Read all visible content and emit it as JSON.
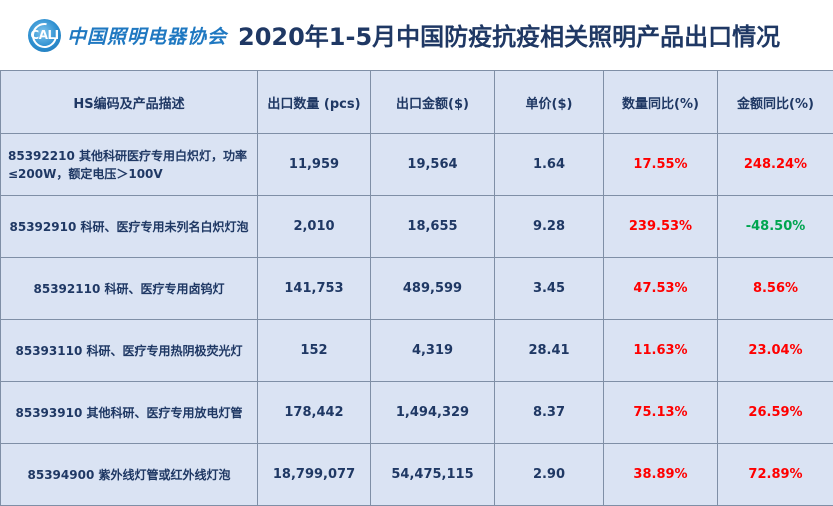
{
  "header": {
    "logo_text": "中国照明电器协会",
    "logo_mark": "CALI",
    "title": "2020年1-5月中国防疫抗疫相关照明产品出口情况"
  },
  "table": {
    "columns": [
      "HS编码及产品描述",
      "出口数量 (pcs)",
      "出口金额($)",
      "单价($)",
      "数量同比(%)",
      "金额同比(%)"
    ],
    "rows": [
      {
        "desc": "85392210 其他科研医疗专用白炽灯，功率≤200W，额定电压＞100V",
        "qty": "11,959",
        "amount": "19,564",
        "price": "1.64",
        "qty_yoy": "17.55%",
        "amt_yoy": "248.24%"
      },
      {
        "desc": "85392910 科研、医疗专用未列名白炽灯泡",
        "qty": "2,010",
        "amount": "18,655",
        "price": "9.28",
        "qty_yoy": "239.53%",
        "amt_yoy": "-48.50%"
      },
      {
        "desc": "85392110 科研、医疗专用卤钨灯",
        "qty": "141,753",
        "amount": "489,599",
        "price": "3.45",
        "qty_yoy": "47.53%",
        "amt_yoy": "8.56%"
      },
      {
        "desc": "85393110 科研、医疗专用热阴极荧光灯",
        "qty": "152",
        "amount": "4,319",
        "price": "28.41",
        "qty_yoy": "11.63%",
        "amt_yoy": "23.04%"
      },
      {
        "desc": "85393910 其他科研、医疗专用放电灯管",
        "qty": "178,442",
        "amount": "1,494,329",
        "price": "8.37",
        "qty_yoy": "75.13%",
        "amt_yoy": "26.59%"
      },
      {
        "desc": "85394900 紫外线灯管或红外线灯泡",
        "qty": "18,799,077",
        "amount": "54,475,115",
        "price": "2.90",
        "qty_yoy": "38.89%",
        "amt_yoy": "72.89%"
      }
    ]
  },
  "colors": {
    "positive": "#ff0000",
    "negative": "#00a550",
    "cell_bg": "#dae3f3",
    "text": "#1f3864"
  }
}
